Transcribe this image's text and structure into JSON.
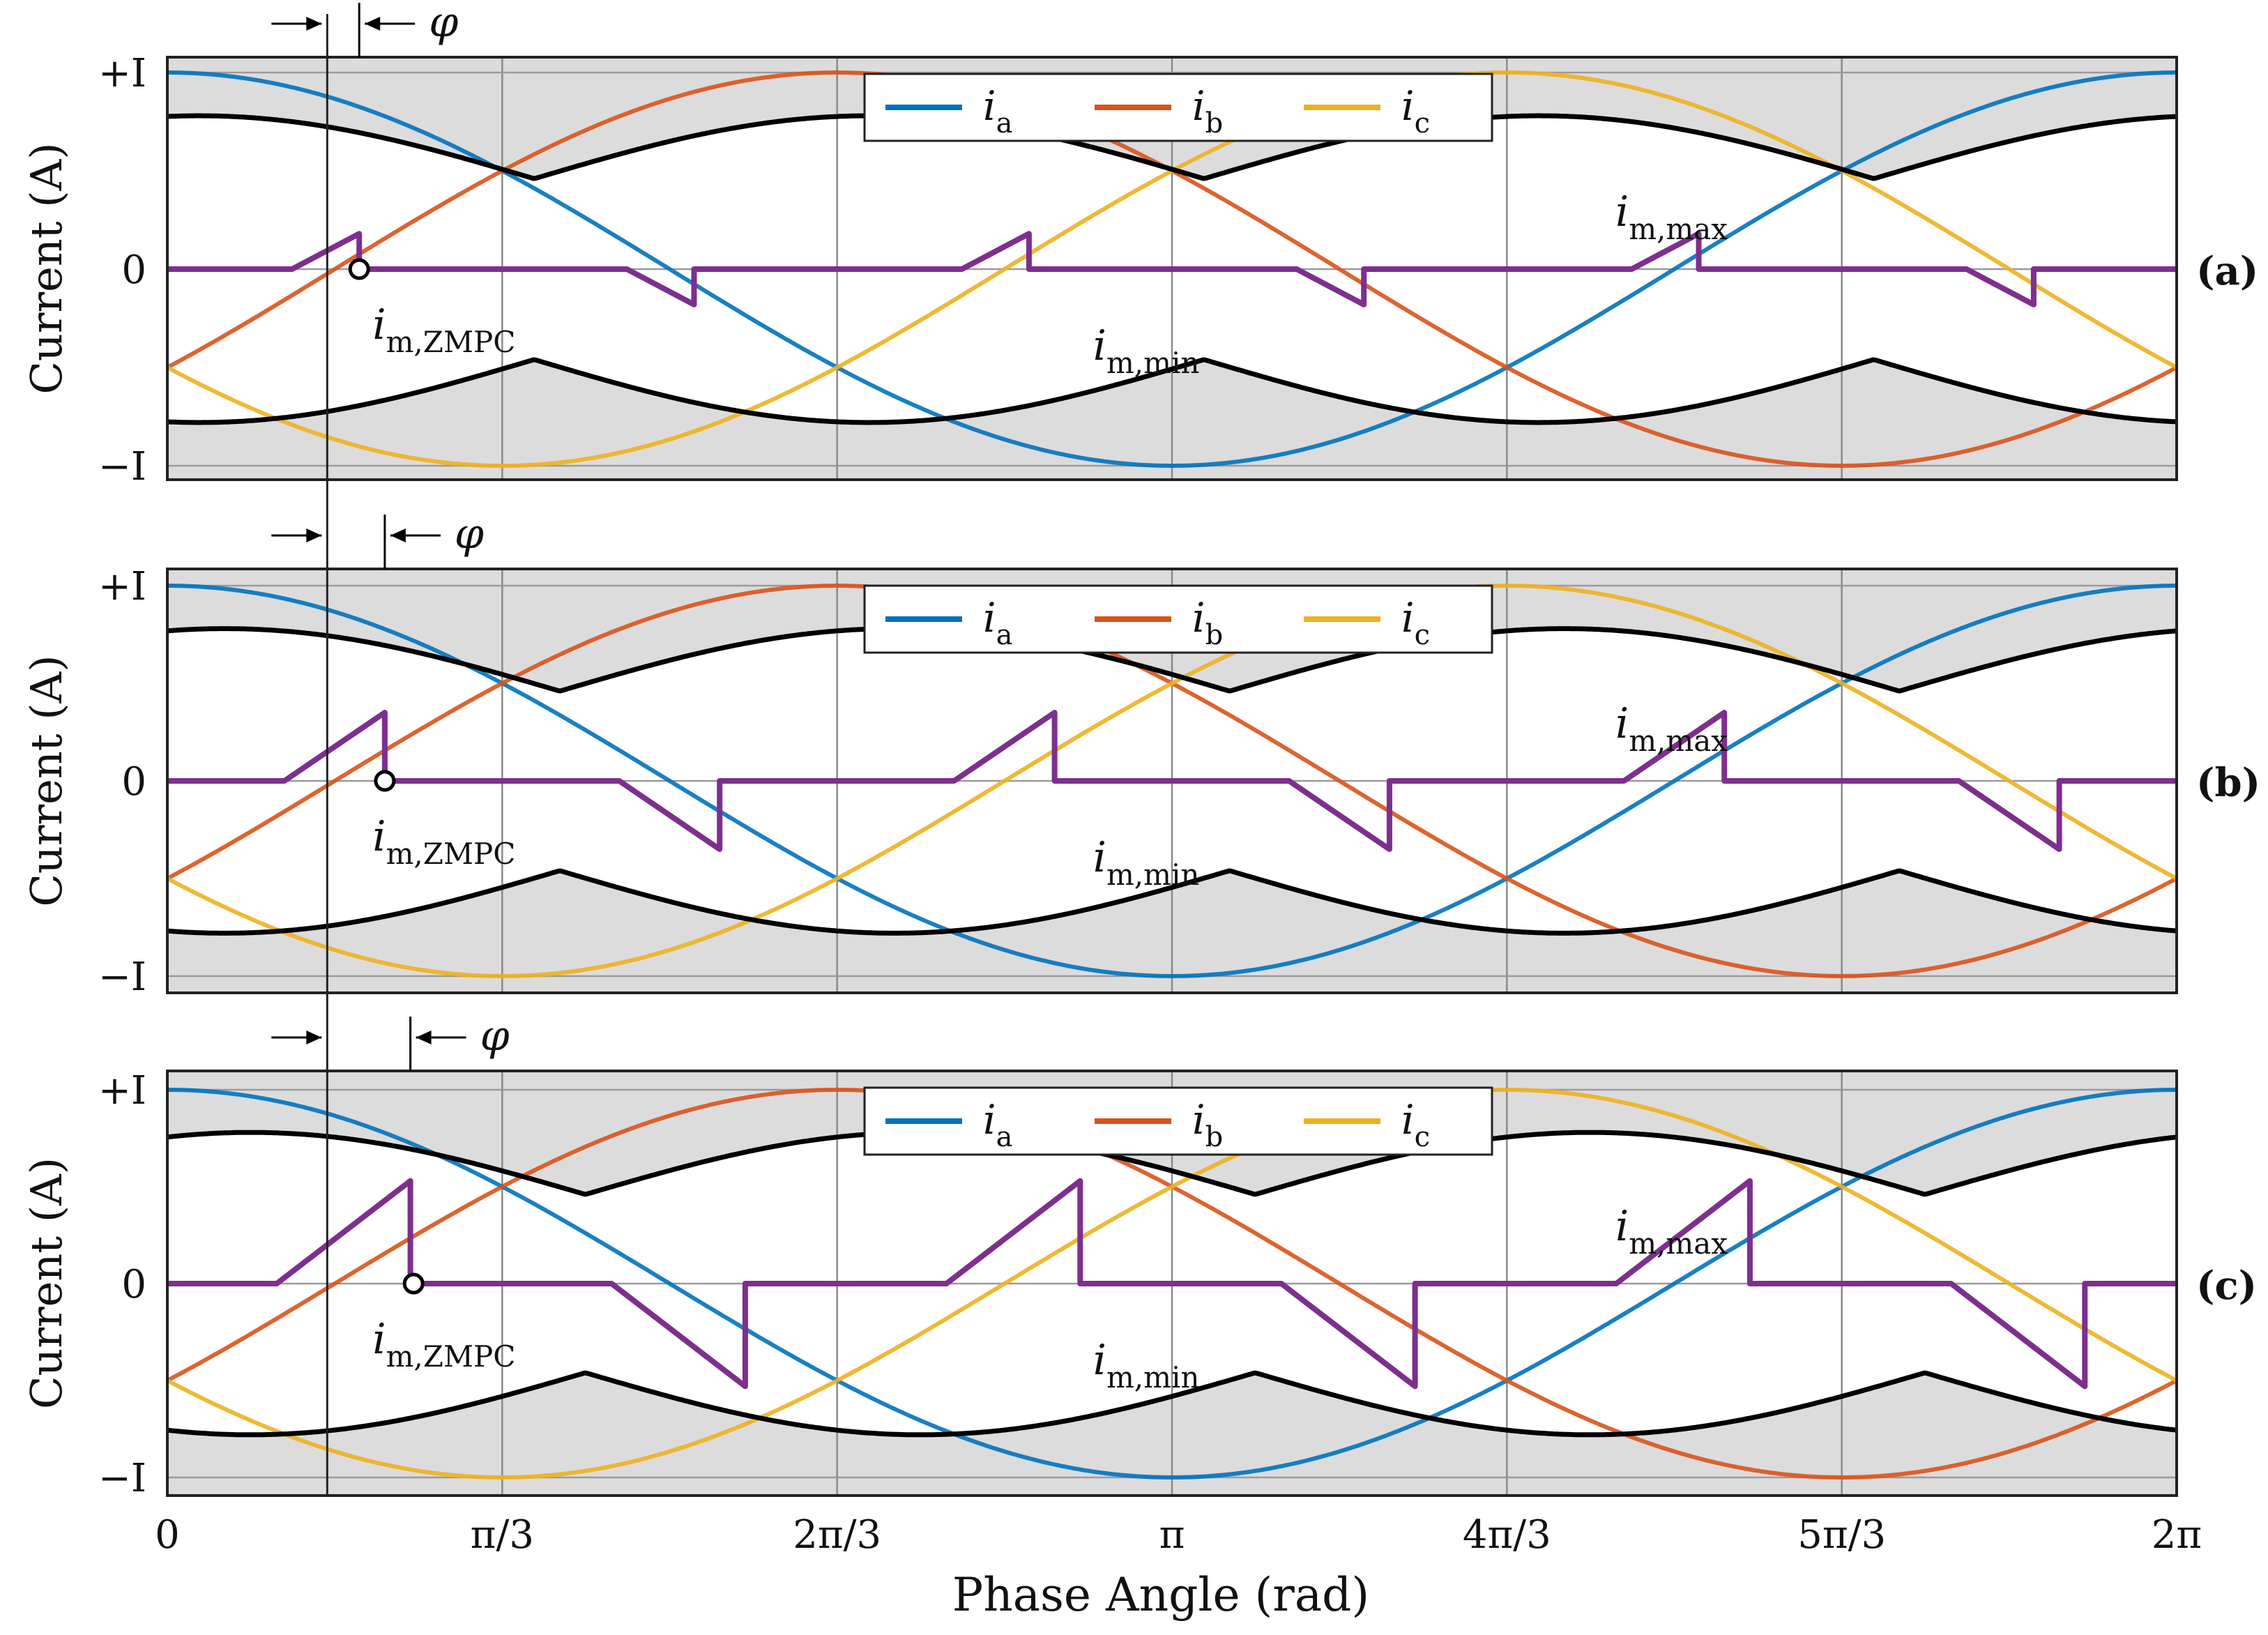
{
  "chart_data": {
    "type": "line",
    "xlabel": "Phase Angle (rad)",
    "ylabel": "Current (A)",
    "xlim": [
      0,
      6.2832
    ],
    "ylim": [
      -1.1,
      1.1
    ],
    "x_ticks": [
      {
        "value": 0,
        "label": "0"
      },
      {
        "value": 1.0472,
        "label": "π/3"
      },
      {
        "value": 2.0944,
        "label": "2π/3"
      },
      {
        "value": 3.1416,
        "label": "π"
      },
      {
        "value": 4.1888,
        "label": "4π/3"
      },
      {
        "value": 5.236,
        "label": "5π/3"
      },
      {
        "value": 6.2832,
        "label": "2π"
      }
    ],
    "y_ticks": [
      {
        "value": 1,
        "label": "+I"
      },
      {
        "value": 0,
        "label": "0"
      },
      {
        "value": -1,
        "label": "−I"
      }
    ],
    "legend": [
      {
        "name": "i",
        "sub": "a",
        "color": "#0072bd"
      },
      {
        "name": "i",
        "sub": "b",
        "color": "#d95319"
      },
      {
        "name": "i",
        "sub": "c",
        "color": "#edb120"
      }
    ],
    "series_info": {
      "i_a": "cos(θ)",
      "i_b": "cos(θ − 2π/3)",
      "i_c": "cos(θ + 2π/3)"
    },
    "panels": [
      {
        "label": "(a)",
        "phi": 0.1,
        "zmpc_point": [
          0.6,
          0
        ],
        "peak": 0.18
      },
      {
        "label": "(b)",
        "phi": 0.18,
        "zmpc_point": [
          0.68,
          0
        ],
        "peak": 0.35
      },
      {
        "label": "(c)",
        "phi": 0.26,
        "zmpc_point": [
          0.77,
          0
        ],
        "peak": 0.53
      }
    ],
    "annotations": {
      "phi_symbol": "φ",
      "i_m_max": {
        "base": "i",
        "sub": "m,max"
      },
      "i_m_min": {
        "base": "i",
        "sub": "m,min"
      },
      "i_m_zmpc": {
        "base": "i",
        "sub": "m,ZMPC"
      }
    }
  }
}
